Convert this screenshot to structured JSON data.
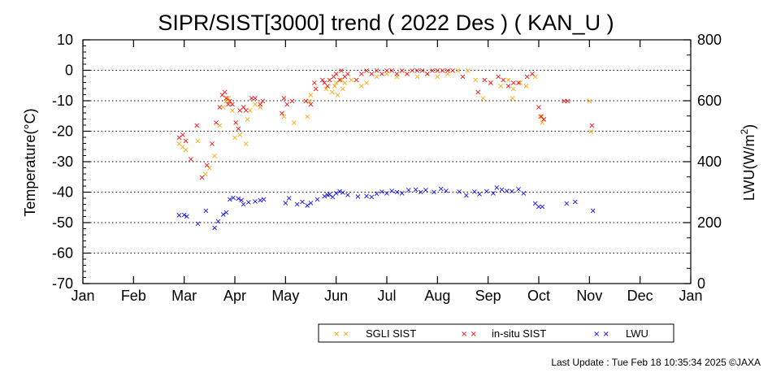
{
  "chart_data": {
    "type": "scatter",
    "title": "SIPR/SIST[3000] trend ( 2022 Des ) ( KAN_U )",
    "ylabel_left": "Temperature(°C)",
    "ylabel_right_parts": [
      "LWU(W/m",
      "2",
      ")"
    ],
    "ylim_left": [
      -70,
      10
    ],
    "ylim_right": [
      0,
      800
    ],
    "yticks_left": [
      10,
      0,
      -10,
      -20,
      -30,
      -40,
      -50,
      -60,
      -70
    ],
    "yticks_right": [
      800,
      600,
      400,
      200,
      0
    ],
    "xlim": [
      0,
      12
    ],
    "x_unit": "month index (0 = 1 Jan, 12 = 1 Jan next year)",
    "xticks": [
      "Jan",
      "Feb",
      "Mar",
      "Apr",
      "May",
      "Jun",
      "Jul",
      "Aug",
      "Sep",
      "Oct",
      "Nov",
      "Dec",
      "Jan"
    ],
    "grid": "horizontal dotted at every 10 °C",
    "legend_position": "bottom-right, below plot",
    "colors": {
      "sgli": "#ffa500",
      "insitu": "#ff0000",
      "lwu": "#0000ff"
    },
    "marker": "×",
    "series": [
      {
        "name": "SGLI SIST",
        "axis": "left",
        "x": [
          1.9,
          1.97,
          2.03,
          2.27,
          2.42,
          2.5,
          2.6,
          2.7,
          2.77,
          2.83,
          2.87,
          2.95,
          3.0,
          3.1,
          3.22,
          3.25,
          3.3,
          3.4,
          3.5,
          3.97,
          4.17,
          4.43,
          4.47,
          4.5,
          4.8,
          4.92,
          4.97,
          5.0,
          5.03,
          5.1,
          5.13,
          5.17,
          5.3,
          5.5,
          5.6,
          5.8,
          6.0,
          6.2,
          6.4,
          6.6,
          6.8,
          7.0,
          7.2,
          7.4,
          7.6,
          7.75,
          7.9,
          8.05,
          8.25,
          8.4,
          8.48,
          8.5,
          8.63,
          8.75,
          8.93,
          9.03,
          9.07,
          9.1,
          10.0,
          10.03
        ],
        "y": [
          -24,
          -25,
          -26,
          -23,
          -34,
          -32,
          -28,
          -18,
          -12,
          -10,
          -9,
          -13,
          -22,
          -21,
          -24,
          -16,
          -13,
          -11,
          -12,
          -15,
          -17,
          -15,
          -10,
          -8,
          -6,
          -7,
          -5,
          -4,
          -8,
          -3,
          -6,
          -4,
          -3,
          -5,
          -4,
          -2,
          -1,
          -2,
          -1,
          -2,
          -1,
          -2,
          -1,
          0,
          0,
          -3,
          -9,
          -4,
          -5,
          -3,
          -9,
          -6,
          -4,
          -5,
          -2,
          -15,
          -17,
          -16,
          -10,
          -20
        ]
      },
      {
        "name": "in-situ SIST",
        "axis": "left",
        "x": [
          1.9,
          1.97,
          2.03,
          2.13,
          2.25,
          2.35,
          2.45,
          2.55,
          2.63,
          2.7,
          2.75,
          2.8,
          2.83,
          2.87,
          2.9,
          2.95,
          3.02,
          3.07,
          3.1,
          3.17,
          3.22,
          3.33,
          3.4,
          3.5,
          3.55,
          3.93,
          3.97,
          4.03,
          4.13,
          4.4,
          4.5,
          4.57,
          4.6,
          4.73,
          4.77,
          4.83,
          4.87,
          4.95,
          5.0,
          5.07,
          5.1,
          5.17,
          5.23,
          5.4,
          5.5,
          5.6,
          5.7,
          5.8,
          5.9,
          6.0,
          6.1,
          6.2,
          6.3,
          6.4,
          6.5,
          6.6,
          6.7,
          6.8,
          6.9,
          7.0,
          7.1,
          7.2,
          7.3,
          7.5,
          7.8,
          7.93,
          8.05,
          8.2,
          8.3,
          8.4,
          8.5,
          8.6,
          8.77,
          8.87,
          9.0,
          9.05,
          9.1,
          9.5,
          9.57,
          10.05
        ],
        "y": [
          -22,
          -21,
          -23,
          -29,
          -18,
          -35,
          -31,
          -24,
          -17,
          -12,
          -8,
          -7,
          -9,
          -11,
          -10,
          -11,
          -17,
          -19,
          -13,
          -12,
          -13,
          -9,
          -9,
          -11,
          -10,
          -14,
          -9,
          -11,
          -10,
          -10,
          -11,
          -4,
          -6,
          -3,
          -4,
          -5,
          -3,
          -2,
          -1,
          -3,
          0,
          -2,
          -1,
          -3,
          -1,
          0,
          -1,
          0,
          -1,
          0,
          0,
          -1,
          0,
          -1,
          0,
          0,
          0,
          -1,
          0,
          0,
          0,
          0,
          0,
          -2,
          -7,
          -3,
          -4,
          -2,
          -3,
          -5,
          -4,
          -4,
          -2,
          -1,
          -12,
          -15,
          -16,
          -10,
          -10,
          -18
        ]
      },
      {
        "name": "LWU",
        "axis": "right",
        "x": [
          1.9,
          2.0,
          2.05,
          2.27,
          2.43,
          2.6,
          2.67,
          2.77,
          2.83,
          2.9,
          2.97,
          3.07,
          3.13,
          3.17,
          3.27,
          3.4,
          3.5,
          3.57,
          4.0,
          4.07,
          4.23,
          4.33,
          4.43,
          4.5,
          4.63,
          4.77,
          4.83,
          4.87,
          4.93,
          5.0,
          5.07,
          5.13,
          5.23,
          5.43,
          5.6,
          5.7,
          5.8,
          5.9,
          6.0,
          6.1,
          6.2,
          6.3,
          6.43,
          6.57,
          6.67,
          6.77,
          6.93,
          7.07,
          7.17,
          7.43,
          7.57,
          7.73,
          7.83,
          7.97,
          8.1,
          8.17,
          8.27,
          8.37,
          8.47,
          8.6,
          8.7,
          8.93,
          9.0,
          9.07,
          9.55,
          9.72,
          10.07
        ],
        "y": [
          225,
          227,
          222,
          198,
          240,
          184,
          206,
          228,
          235,
          278,
          283,
          280,
          275,
          261,
          268,
          271,
          275,
          277,
          265,
          282,
          262,
          270,
          257,
          265,
          278,
          288,
          292,
          294,
          285,
          297,
          304,
          300,
          292,
          287,
          288,
          286,
          296,
          303,
          297,
          305,
          302,
          298,
          308,
          310,
          301,
          308,
          302,
          312,
          306,
          303,
          291,
          303,
          295,
          304,
          297,
          316,
          309,
          305,
          304,
          311,
          298,
          264,
          253,
          254,
          264,
          270,
          240
        ]
      }
    ]
  },
  "footer": "Last Update : Tue Feb 18 10:35:34 2025  ©JAXA"
}
